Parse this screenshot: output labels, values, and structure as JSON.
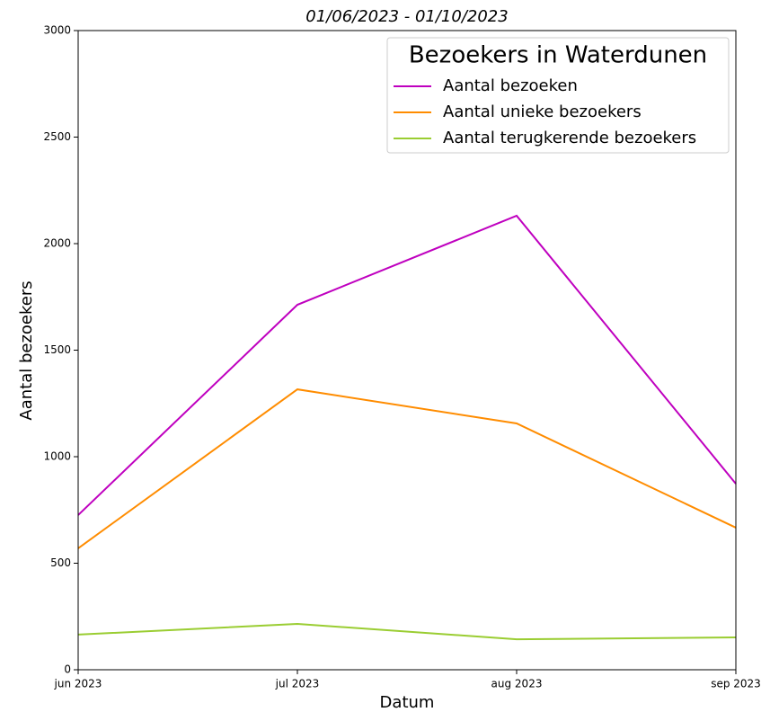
{
  "chart_data": {
    "type": "line",
    "title": "01/06/2023 - 01/10/2023",
    "legend_title": "Bezoekers in Waterdunen",
    "xlabel": "Datum",
    "ylabel": "Aantal bezoekers",
    "categories": [
      "jun 2023",
      "jul 2023",
      "aug 2023",
      "sep 2023"
    ],
    "series": [
      {
        "name": "Aantal bezoeken",
        "color": "#bf00bf",
        "values": [
          726,
          1713,
          2131,
          873
        ]
      },
      {
        "name": "Aantal unieke bezoekers",
        "color": "#ff8c00",
        "values": [
          570,
          1316,
          1156,
          667
        ]
      },
      {
        "name": "Aantal terugkerende bezoekers",
        "color": "#9acd32",
        "values": [
          165,
          215,
          143,
          152
        ]
      }
    ],
    "ylim": [
      0,
      3000
    ],
    "yticks": [
      0,
      500,
      1000,
      1500,
      2000,
      2500,
      3000
    ],
    "grid": false,
    "legend": "upper right"
  }
}
